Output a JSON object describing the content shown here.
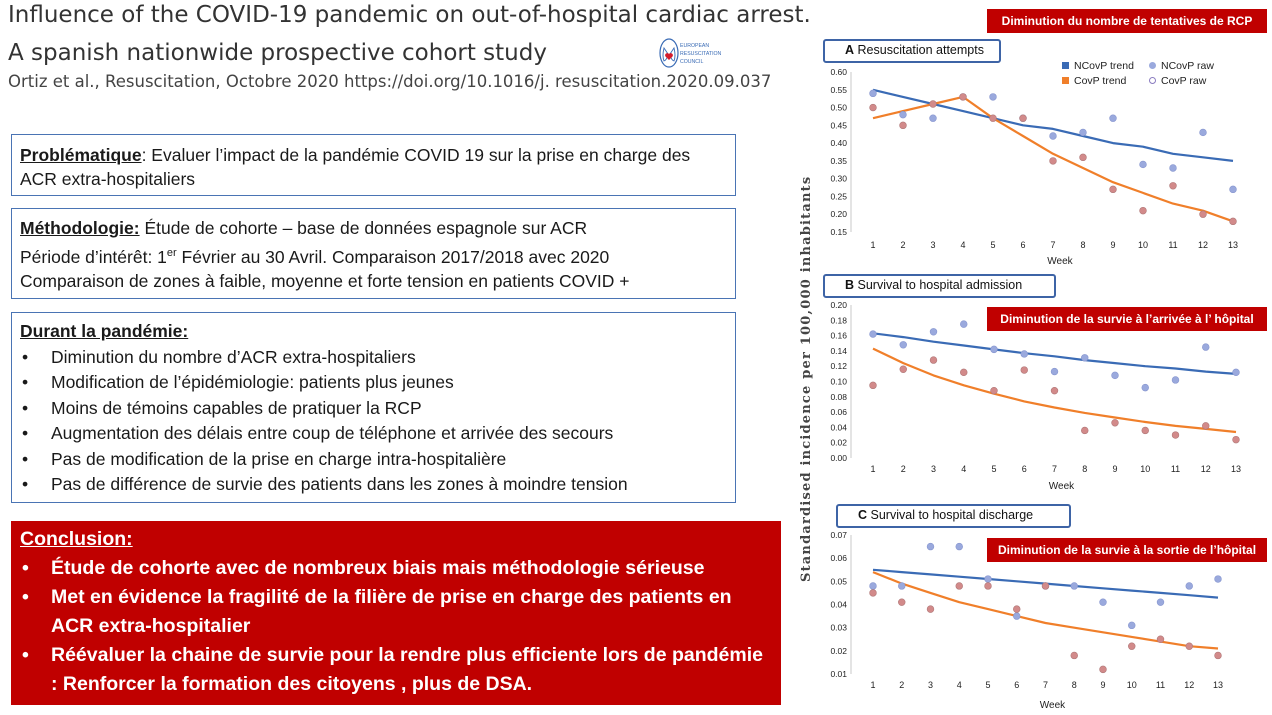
{
  "header": {
    "title_line1": "Influence of the COVID-19 pandemic on out-of-hospital cardiac arrest.",
    "title_line2": "A spanish nationwide prospective cohort study",
    "citation": "Ortiz et al., Resuscitation, Octobre 2020 https://doi.org/10.1016/j. resuscitation.2020.09.037",
    "logo_text": [
      "EUROPEAN",
      "RESUSCITATION",
      "COUNCIL"
    ]
  },
  "problematique": {
    "label": "Problématique",
    "text": "Evaluer l’impact de la pandémie COVID 19 sur la prise en charge des ACR extra-hospitaliers"
  },
  "methodologie": {
    "label": "Méthodologie:",
    "line1": "Étude de cohorte – base de données espagnole sur ACR",
    "line2_a": "Période d’intérêt: 1",
    "line2_sup": "er",
    "line2_b": " Février au 30 Avril. Comparaison 2017/2018 avec 2020",
    "line3": "Comparaison de zones à faible, moyenne et forte tension en patients COVID +"
  },
  "durant": {
    "label": "Durant la pandémie:",
    "items": [
      "Diminution du nombre d’ACR extra-hospitaliers",
      "Modification de l’épidémiologie: patients plus jeunes",
      "Moins de témoins capables de pratiquer la RCP",
      "Augmentation des délais entre coup de téléphone et arrivée des secours",
      "Pas de modification de la prise en charge intra-hospitalière",
      "Pas de différence de survie des patients dans les zones à moindre tension"
    ]
  },
  "conclusion": {
    "label": "Conclusion:",
    "items": [
      "Étude de cohorte avec de nombreux biais mais méthodologie sérieuse",
      "Met en évidence la fragilité de la filière de prise en charge des patients en ACR extra-hospitalier",
      "Réévaluer la chaine de survie pour la rendre plus efficiente lors de pandémie : Renforcer la formation des citoyens , plus de DSA."
    ]
  },
  "tags": {
    "tag1": "Diminution du nombre de tentatives de RCP",
    "tag2": "Diminution de la survie à l’arrivée à l’ hôpital",
    "tag3": "Diminution de la survie à la sortie de l’hôpital"
  },
  "colors": {
    "ncov": "#3a6bb5",
    "cov": "#f07f2a",
    "ncov_raw": "#9aa9dd",
    "cov_raw": "#d28a8a",
    "accent_red": "#c00000",
    "box_border": "#4a74b4"
  },
  "shared_ylabel": "Standardised incidence per 100,000 inhabitants",
  "legend": {
    "ncov_trend": "NCovP trend",
    "ncov_raw": "NCovP raw",
    "cov_trend": "CovP trend",
    "cov_raw": "CovP raw"
  },
  "chart_data": [
    {
      "type": "line",
      "panel_letter": "A",
      "title": "Resuscitation attempts",
      "xlabel": "Week",
      "x": [
        1,
        2,
        3,
        4,
        5,
        6,
        7,
        8,
        9,
        10,
        11,
        12,
        13
      ],
      "ylim": [
        0.15,
        0.6
      ],
      "yticks": [
        "0.15",
        "0.20",
        "0.25",
        "0.30",
        "0.35",
        "0.40",
        "0.45",
        "0.50",
        "0.55",
        "0.60"
      ],
      "series": [
        {
          "name": "NCovP trend",
          "values": [
            0.55,
            0.53,
            0.51,
            0.49,
            0.47,
            0.45,
            0.44,
            0.42,
            0.4,
            0.39,
            0.37,
            0.36,
            0.35
          ]
        },
        {
          "name": "CovP trend",
          "values": [
            0.47,
            0.49,
            0.51,
            0.53,
            0.47,
            0.42,
            0.37,
            0.33,
            0.29,
            0.26,
            0.23,
            0.21,
            0.18
          ]
        },
        {
          "name": "NCovP raw",
          "values": [
            0.54,
            0.48,
            0.47,
            0.53,
            0.53,
            0.47,
            0.42,
            0.43,
            0.47,
            0.34,
            0.33,
            0.43,
            0.27
          ]
        },
        {
          "name": "CovP raw",
          "values": [
            0.5,
            0.45,
            0.51,
            0.53,
            0.47,
            0.47,
            0.35,
            0.36,
            0.27,
            0.21,
            0.28,
            0.2,
            0.18
          ]
        }
      ]
    },
    {
      "type": "line",
      "panel_letter": "B",
      "title": "Survival to hospital admission",
      "xlabel": "Week",
      "x": [
        1,
        2,
        3,
        4,
        5,
        6,
        7,
        8,
        9,
        10,
        11,
        12,
        13
      ],
      "ylim": [
        0.0,
        0.2
      ],
      "yticks": [
        "0.00",
        "0.02",
        "0.04",
        "0.06",
        "0.08",
        "0.10",
        "0.12",
        "0.14",
        "0.16",
        "0.18",
        "0.20"
      ],
      "series": [
        {
          "name": "NCovP trend",
          "values": [
            0.163,
            0.158,
            0.152,
            0.147,
            0.142,
            0.137,
            0.133,
            0.128,
            0.124,
            0.12,
            0.117,
            0.113,
            0.11
          ]
        },
        {
          "name": "CovP trend",
          "values": [
            0.143,
            0.124,
            0.108,
            0.095,
            0.084,
            0.074,
            0.066,
            0.059,
            0.053,
            0.047,
            0.042,
            0.038,
            0.034
          ]
        },
        {
          "name": "NCovP raw",
          "values": [
            0.162,
            0.148,
            0.165,
            0.175,
            0.142,
            0.136,
            0.113,
            0.131,
            0.108,
            0.092,
            0.102,
            0.145,
            0.112
          ]
        },
        {
          "name": "CovP raw",
          "values": [
            0.095,
            0.116,
            0.128,
            0.112,
            0.088,
            0.115,
            0.088,
            0.036,
            0.046,
            0.036,
            0.03,
            0.042,
            0.024
          ]
        }
      ]
    },
    {
      "type": "line",
      "panel_letter": "C",
      "title": "Survival to hospital discharge",
      "xlabel": "Week",
      "x": [
        1,
        2,
        3,
        4,
        5,
        6,
        7,
        8,
        9,
        10,
        11,
        12,
        13
      ],
      "ylim": [
        0.01,
        0.07
      ],
      "yticks": [
        "0.01",
        "0.02",
        "0.03",
        "0.04",
        "0.05",
        "0.06",
        "0.07"
      ],
      "series": [
        {
          "name": "NCovP trend",
          "values": [
            0.055,
            0.054,
            0.053,
            0.052,
            0.051,
            0.05,
            0.049,
            0.048,
            0.047,
            0.046,
            0.045,
            0.044,
            0.043
          ]
        },
        {
          "name": "CovP trend",
          "values": [
            0.054,
            0.049,
            0.045,
            0.041,
            0.038,
            0.035,
            0.032,
            0.03,
            0.028,
            0.026,
            0.024,
            0.022,
            0.021
          ]
        },
        {
          "name": "NCovP raw",
          "values": [
            0.048,
            0.048,
            0.065,
            0.065,
            0.051,
            0.035,
            0.048,
            0.048,
            0.041,
            0.031,
            0.041,
            0.048,
            0.051
          ]
        },
        {
          "name": "CovP raw",
          "values": [
            0.045,
            0.041,
            0.038,
            0.048,
            0.048,
            0.038,
            0.048,
            0.018,
            0.012,
            0.022,
            0.025,
            0.022,
            0.018
          ]
        }
      ]
    }
  ]
}
